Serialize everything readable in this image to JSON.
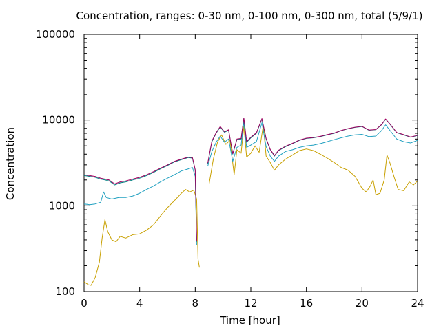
{
  "chart_data": {
    "type": "line",
    "title": "Concentration, ranges: 0-30 nm, 0-100 nm, 0-300 nm, total (5/9/1)",
    "xlabel": "Time [hour]",
    "ylabel": "Concentration",
    "xlim": [
      0,
      24
    ],
    "ylim": [
      100,
      100000
    ],
    "yscale": "log",
    "grid": false,
    "legend": "none",
    "x_ticks": [
      0,
      4,
      8,
      12,
      16,
      20,
      24
    ],
    "x_tick_labels": [
      "0",
      "4",
      "8",
      "12",
      "16",
      "20",
      "24"
    ],
    "y_ticks": [
      100,
      1000,
      10000,
      100000
    ],
    "y_tick_labels": [
      "100",
      "1000",
      "10000",
      "100000"
    ],
    "series": [
      {
        "color": "#c8a000",
        "points": [
          [
            0.0,
            130
          ],
          [
            0.3,
            120
          ],
          [
            0.5,
            118
          ],
          [
            0.8,
            145
          ],
          [
            1.1,
            220
          ],
          [
            1.3,
            420
          ],
          [
            1.5,
            690
          ],
          [
            1.7,
            500
          ],
          [
            2.0,
            400
          ],
          [
            2.3,
            380
          ],
          [
            2.6,
            440
          ],
          [
            3.0,
            420
          ],
          [
            3.5,
            460
          ],
          [
            4.0,
            470
          ],
          [
            4.5,
            520
          ],
          [
            5.0,
            600
          ],
          [
            5.5,
            760
          ],
          [
            6.0,
            950
          ],
          [
            6.5,
            1150
          ],
          [
            7.0,
            1400
          ],
          [
            7.3,
            1550
          ],
          [
            7.6,
            1450
          ],
          [
            7.9,
            1520
          ],
          [
            8.1,
            1200
          ],
          [
            8.2,
            240
          ],
          [
            8.3,
            190
          ],
          [
            null,
            null
          ],
          [
            9.0,
            1800
          ],
          [
            9.3,
            3500
          ],
          [
            9.6,
            5500
          ],
          [
            9.9,
            6700
          ],
          [
            10.2,
            5200
          ],
          [
            10.5,
            5800
          ],
          [
            10.8,
            2300
          ],
          [
            11.0,
            4500
          ],
          [
            11.3,
            4100
          ],
          [
            11.5,
            8500
          ],
          [
            11.7,
            3700
          ],
          [
            12.0,
            4100
          ],
          [
            12.3,
            5000
          ],
          [
            12.6,
            4200
          ],
          [
            12.9,
            8700
          ],
          [
            13.1,
            3800
          ],
          [
            13.4,
            3200
          ],
          [
            13.7,
            2600
          ],
          [
            14.0,
            3000
          ],
          [
            14.5,
            3500
          ],
          [
            15.0,
            3900
          ],
          [
            15.5,
            4400
          ],
          [
            16.0,
            4600
          ],
          [
            16.5,
            4400
          ],
          [
            17.0,
            4000
          ],
          [
            17.5,
            3600
          ],
          [
            18.0,
            3200
          ],
          [
            18.5,
            2800
          ],
          [
            19.0,
            2600
          ],
          [
            19.5,
            2200
          ],
          [
            20.0,
            1600
          ],
          [
            20.3,
            1450
          ],
          [
            20.6,
            1700
          ],
          [
            20.8,
            2000
          ],
          [
            21.0,
            1350
          ],
          [
            21.3,
            1400
          ],
          [
            21.6,
            2000
          ],
          [
            21.8,
            3900
          ],
          [
            22.0,
            3200
          ],
          [
            22.3,
            2200
          ],
          [
            22.6,
            1550
          ],
          [
            23.0,
            1500
          ],
          [
            23.4,
            1900
          ],
          [
            23.7,
            1750
          ],
          [
            24.0,
            1950
          ]
        ]
      },
      {
        "color": "#20a0c0",
        "points": [
          [
            0.0,
            1050
          ],
          [
            0.4,
            1030
          ],
          [
            0.8,
            1050
          ],
          [
            1.2,
            1100
          ],
          [
            1.4,
            1450
          ],
          [
            1.6,
            1250
          ],
          [
            2.0,
            1200
          ],
          [
            2.5,
            1250
          ],
          [
            3.0,
            1250
          ],
          [
            3.5,
            1300
          ],
          [
            4.0,
            1400
          ],
          [
            4.5,
            1550
          ],
          [
            5.0,
            1700
          ],
          [
            5.5,
            1900
          ],
          [
            6.0,
            2100
          ],
          [
            6.5,
            2300
          ],
          [
            7.0,
            2550
          ],
          [
            7.5,
            2700
          ],
          [
            7.8,
            2800
          ],
          [
            8.0,
            2200
          ],
          [
            8.1,
            350
          ],
          [
            null,
            null
          ],
          [
            8.9,
            2900
          ],
          [
            9.2,
            4300
          ],
          [
            9.5,
            5500
          ],
          [
            9.8,
            6500
          ],
          [
            10.1,
            5500
          ],
          [
            10.4,
            6000
          ],
          [
            10.7,
            3300
          ],
          [
            11.0,
            4800
          ],
          [
            11.3,
            5100
          ],
          [
            11.5,
            9500
          ],
          [
            11.7,
            4800
          ],
          [
            12.0,
            5100
          ],
          [
            12.4,
            5600
          ],
          [
            12.8,
            9300
          ],
          [
            13.1,
            4900
          ],
          [
            13.4,
            3800
          ],
          [
            13.7,
            3300
          ],
          [
            14.0,
            3800
          ],
          [
            14.5,
            4300
          ],
          [
            15.0,
            4500
          ],
          [
            15.5,
            4800
          ],
          [
            16.0,
            5000
          ],
          [
            16.5,
            5100
          ],
          [
            17.0,
            5300
          ],
          [
            17.5,
            5600
          ],
          [
            18.0,
            5900
          ],
          [
            18.5,
            6200
          ],
          [
            19.0,
            6500
          ],
          [
            19.5,
            6700
          ],
          [
            20.0,
            6800
          ],
          [
            20.5,
            6400
          ],
          [
            21.0,
            6500
          ],
          [
            21.4,
            7500
          ],
          [
            21.7,
            8800
          ],
          [
            22.0,
            7600
          ],
          [
            22.5,
            6000
          ],
          [
            23.0,
            5600
          ],
          [
            23.5,
            5400
          ],
          [
            24.0,
            5800
          ]
        ]
      },
      {
        "color": "#008080",
        "points": [
          [
            0.0,
            2250
          ],
          [
            0.4,
            2200
          ],
          [
            0.8,
            2150
          ],
          [
            1.2,
            2050
          ],
          [
            1.5,
            2000
          ],
          [
            1.8,
            1950
          ],
          [
            2.2,
            1750
          ],
          [
            2.6,
            1850
          ],
          [
            3.0,
            1900
          ],
          [
            3.5,
            2000
          ],
          [
            4.0,
            2100
          ],
          [
            4.5,
            2250
          ],
          [
            5.0,
            2450
          ],
          [
            5.5,
            2700
          ],
          [
            6.0,
            2950
          ],
          [
            6.5,
            3250
          ],
          [
            7.0,
            3450
          ],
          [
            7.5,
            3650
          ],
          [
            7.8,
            3600
          ],
          [
            8.0,
            2600
          ],
          [
            8.1,
            380
          ],
          [
            null,
            null
          ],
          [
            8.9,
            3100
          ],
          [
            9.2,
            5600
          ],
          [
            9.5,
            7000
          ],
          [
            9.8,
            8300
          ],
          [
            10.1,
            7200
          ],
          [
            10.4,
            7600
          ],
          [
            10.7,
            4000
          ],
          [
            11.0,
            5900
          ],
          [
            11.3,
            6000
          ],
          [
            11.5,
            10500
          ],
          [
            11.7,
            5500
          ],
          [
            12.0,
            6200
          ],
          [
            12.4,
            7000
          ],
          [
            12.8,
            10300
          ],
          [
            13.1,
            6000
          ],
          [
            13.4,
            4500
          ],
          [
            13.7,
            3800
          ],
          [
            14.0,
            4400
          ],
          [
            14.5,
            4900
          ],
          [
            15.0,
            5300
          ],
          [
            15.5,
            5800
          ],
          [
            16.0,
            6100
          ],
          [
            16.5,
            6200
          ],
          [
            17.0,
            6400
          ],
          [
            17.5,
            6700
          ],
          [
            18.0,
            7000
          ],
          [
            18.5,
            7500
          ],
          [
            19.0,
            7900
          ],
          [
            19.5,
            8200
          ],
          [
            20.0,
            8400
          ],
          [
            20.5,
            7600
          ],
          [
            21.0,
            7700
          ],
          [
            21.4,
            8800
          ],
          [
            21.7,
            10200
          ],
          [
            22.0,
            9000
          ],
          [
            22.5,
            7100
          ],
          [
            23.0,
            6700
          ],
          [
            23.5,
            6300
          ],
          [
            24.0,
            6600
          ]
        ]
      },
      {
        "color": "#a00060",
        "points": [
          [
            0.0,
            2300
          ],
          [
            0.4,
            2250
          ],
          [
            0.8,
            2200
          ],
          [
            1.2,
            2100
          ],
          [
            1.5,
            2050
          ],
          [
            1.8,
            2000
          ],
          [
            2.2,
            1800
          ],
          [
            2.6,
            1900
          ],
          [
            3.0,
            1950
          ],
          [
            3.5,
            2050
          ],
          [
            4.0,
            2150
          ],
          [
            4.5,
            2300
          ],
          [
            5.0,
            2500
          ],
          [
            5.5,
            2750
          ],
          [
            6.0,
            3000
          ],
          [
            6.5,
            3300
          ],
          [
            7.0,
            3500
          ],
          [
            7.5,
            3700
          ],
          [
            7.8,
            3650
          ],
          [
            8.0,
            2650
          ],
          [
            8.1,
            390
          ],
          [
            null,
            null
          ],
          [
            8.9,
            3150
          ],
          [
            9.2,
            5700
          ],
          [
            9.5,
            7100
          ],
          [
            9.8,
            8400
          ],
          [
            10.1,
            7300
          ],
          [
            10.4,
            7700
          ],
          [
            10.7,
            4050
          ],
          [
            11.0,
            6000
          ],
          [
            11.3,
            6100
          ],
          [
            11.5,
            10600
          ],
          [
            11.7,
            5600
          ],
          [
            12.0,
            6300
          ],
          [
            12.4,
            7100
          ],
          [
            12.8,
            10400
          ],
          [
            13.1,
            6100
          ],
          [
            13.4,
            4550
          ],
          [
            13.7,
            3850
          ],
          [
            14.0,
            4450
          ],
          [
            14.5,
            4950
          ],
          [
            15.0,
            5350
          ],
          [
            15.5,
            5850
          ],
          [
            16.0,
            6150
          ],
          [
            16.5,
            6250
          ],
          [
            17.0,
            6450
          ],
          [
            17.5,
            6750
          ],
          [
            18.0,
            7050
          ],
          [
            18.5,
            7550
          ],
          [
            19.0,
            7950
          ],
          [
            19.5,
            8250
          ],
          [
            20.0,
            8450
          ],
          [
            20.5,
            7650
          ],
          [
            21.0,
            7750
          ],
          [
            21.4,
            8850
          ],
          [
            21.7,
            10300
          ],
          [
            22.0,
            9050
          ],
          [
            22.5,
            7150
          ],
          [
            23.0,
            6750
          ],
          [
            23.5,
            6350
          ],
          [
            24.0,
            6650
          ]
        ]
      }
    ]
  }
}
